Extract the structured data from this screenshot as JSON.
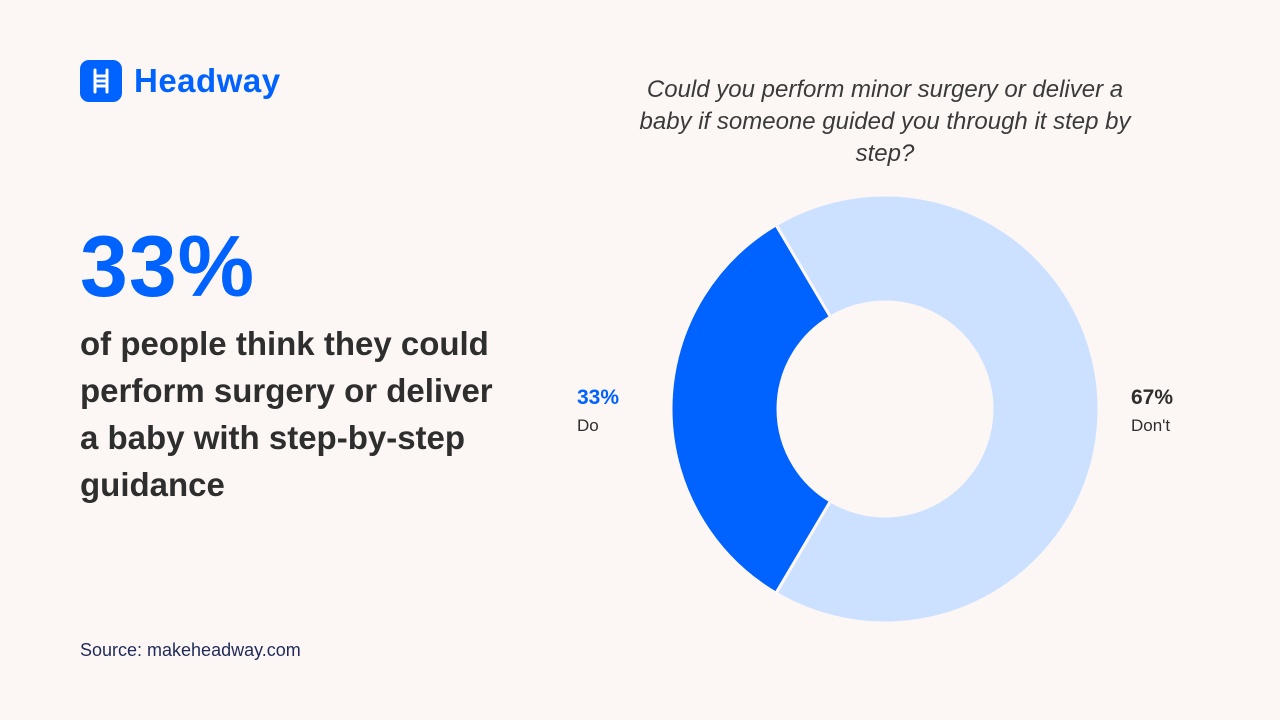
{
  "brand": {
    "name": "Headway",
    "color": "#0062ff",
    "icon": "ladder-icon"
  },
  "headline": {
    "value": "33%",
    "text": "of people think they could perform surgery or deliver a baby with step-by-step guidance"
  },
  "source": "Source: makeheadway.com",
  "chart_data": {
    "type": "pie",
    "variant": "donut",
    "title": "Could you perform minor surgery or deliver a baby if someone guided you through it step by step?",
    "slices": [
      {
        "label": "Do",
        "value": 33,
        "value_label": "33%",
        "color": "#0062ff"
      },
      {
        "label": "Don't",
        "value": 67,
        "value_label": "67%",
        "color": "#cce0ff"
      }
    ]
  }
}
